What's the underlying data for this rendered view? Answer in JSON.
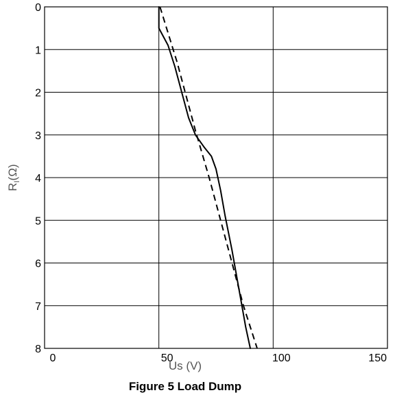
{
  "chart_data": {
    "type": "line",
    "caption": "Figure 5 Load Dump",
    "xlabel": "Us (V)",
    "ylabel_main": "R",
    "ylabel_sub": "I",
    "ylabel_unit": "(Ω)",
    "xlim": [
      0,
      150
    ],
    "ylim": [
      0,
      8
    ],
    "y_inverted": true,
    "grid": true,
    "x_ticks": [
      0,
      50,
      100,
      150
    ],
    "y_ticks": [
      0,
      1,
      2,
      3,
      4,
      5,
      6,
      7,
      8
    ],
    "series": [
      {
        "style": "solid",
        "color": "#000000",
        "points": [
          [
            50,
            0
          ],
          [
            50,
            0.5
          ],
          [
            54,
            0.9
          ],
          [
            57,
            1.4
          ],
          [
            60,
            2.0
          ],
          [
            63,
            2.6
          ],
          [
            66,
            3.0
          ],
          [
            70,
            3.3
          ],
          [
            73,
            3.5
          ],
          [
            75,
            3.8
          ],
          [
            77,
            4.3
          ],
          [
            79,
            4.9
          ],
          [
            82,
            5.7
          ],
          [
            85,
            6.6
          ],
          [
            88,
            7.5
          ],
          [
            90,
            8.0
          ]
        ]
      },
      {
        "style": "dashed",
        "color": "#000000",
        "points": [
          [
            50.5,
            0
          ],
          [
            58,
            1.3
          ],
          [
            66,
            2.9
          ],
          [
            72,
            4.0
          ],
          [
            80,
            5.6
          ],
          [
            87,
            7.0
          ],
          [
            93,
            8.0
          ]
        ]
      }
    ]
  }
}
